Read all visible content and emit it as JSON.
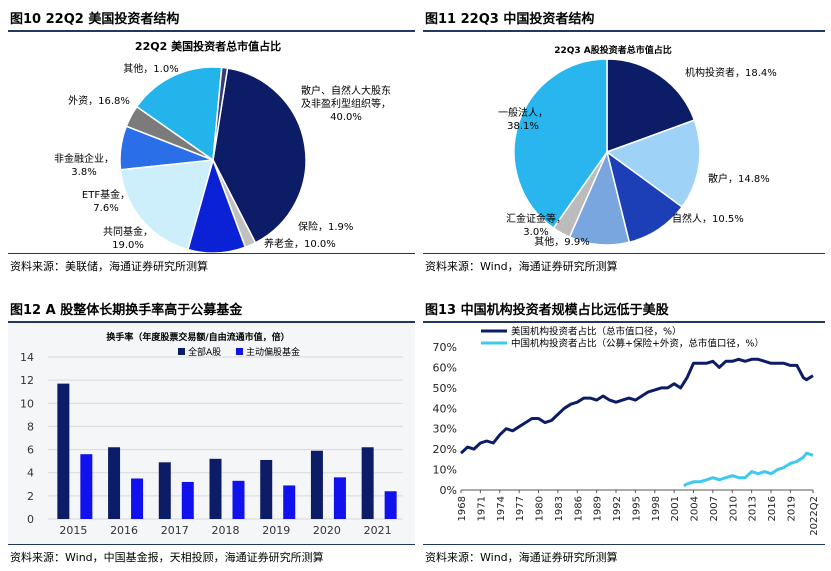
{
  "panels": {
    "p10": {
      "title": "图10 22Q2 美国投资者结构",
      "source": "资料来源：美联储，海通证券研究所测算"
    },
    "p11": {
      "title": "图11 22Q3 中国投资者结构",
      "source": "资料来源：Wind，海通证券研究所测算"
    },
    "p12": {
      "title": "图12 A 股整体长期换手率高于公募基金",
      "source": "资料来源：Wind，中国基金报，天相投顾，海通证券研究所测算"
    },
    "p13": {
      "title": "图13 中国机构投资者规模占比远低于美股",
      "source": "资料来源：Wind，海通证券研究所测算"
    }
  },
  "chart_data": [
    {
      "type": "pie",
      "title": "22Q2 美国投资者总市值占比",
      "labels": [
        "散户、自然人大股东及非盈利型组织等",
        "保险",
        "养老金",
        "共同基金",
        "ETF基金",
        "非金融企业",
        "外资",
        "其他"
      ],
      "values": [
        40.0,
        1.9,
        10.0,
        19.0,
        7.6,
        3.8,
        16.8,
        1.0
      ],
      "label_text": [
        [
          "散户、自然人大股东",
          "及非盈利型组织等，",
          "40.0%"
        ],
        [
          "保险，1.9%"
        ],
        [
          "养老金，10.0%"
        ],
        [
          "共同基金，",
          "19.0%"
        ],
        [
          "ETF基金，",
          "7.6%"
        ],
        [
          "非金融企业，",
          "3.8%"
        ],
        [
          "外资，16.8%"
        ],
        [
          "其他，1.0%"
        ]
      ],
      "colors": [
        "#0d1c66",
        "#c0c0c0",
        "#0b21d6",
        "#cdeffb",
        "#2a6fe8",
        "#7b7b7b",
        "#22b4ea",
        "#3a3a78"
      ]
    },
    {
      "type": "pie",
      "title": "22Q3 A股投资者总市值占比",
      "labels": [
        "机构投资者",
        "散户",
        "自然人",
        "其他",
        "汇金证金等",
        "一般法人"
      ],
      "values": [
        18.4,
        14.8,
        10.5,
        9.9,
        3.0,
        38.1
      ],
      "label_text": [
        [
          "机构投资者，18.4%"
        ],
        [
          "散户，14.8%"
        ],
        [
          "自然人，10.5%"
        ],
        [
          "其他，9.9%"
        ],
        [
          "汇金证金等，",
          "3.0%"
        ],
        [
          "一般法人，",
          "38.1%"
        ]
      ],
      "colors": [
        "#0d1c66",
        "#9ed3f7",
        "#1c3fb7",
        "#7aa6df",
        "#bcbcbc",
        "#29b6ef"
      ]
    },
    {
      "type": "bar",
      "title": "换手率（年度股票交易额/自由流通市值，倍）",
      "categories": [
        "2015",
        "2016",
        "2017",
        "2018",
        "2019",
        "2020",
        "2021"
      ],
      "series": [
        {
          "name": "全部A股",
          "values": [
            11.7,
            6.2,
            4.9,
            5.2,
            5.1,
            5.9,
            6.2
          ],
          "color": "#0d1c66"
        },
        {
          "name": "主动偏股基金",
          "values": [
            5.6,
            3.5,
            3.2,
            3.3,
            2.9,
            3.6,
            2.4
          ],
          "color": "#1111ee"
        }
      ],
      "ylim": [
        0,
        14
      ],
      "yticks": [
        "0",
        "2",
        "4",
        "6",
        "8",
        "10",
        "12",
        "14"
      ],
      "grid": true,
      "legend": "top"
    },
    {
      "type": "line",
      "series": [
        {
          "name": "美国机构投资者占比（总市值口径，%）",
          "color": "#0d1c66",
          "x": [
            1968,
            1969,
            1970,
            1971,
            1972,
            1973,
            1974,
            1975,
            1976,
            1977,
            1978,
            1979,
            1980,
            1981,
            1982,
            1983,
            1984,
            1985,
            1986,
            1987,
            1988,
            1989,
            1990,
            1991,
            1992,
            1993,
            1994,
            1995,
            1996,
            1997,
            1998,
            1999,
            2000,
            2001,
            2002,
            2003,
            2004,
            2005,
            2006,
            2007,
            2008,
            2009,
            2010,
            2011,
            2012,
            2013,
            2014,
            2015,
            2016,
            2017,
            2018,
            2019,
            2020,
            2021,
            2021.5,
            2022.5
          ],
          "values": [
            18,
            21,
            20,
            23,
            24,
            23,
            27,
            30,
            29,
            31,
            33,
            35,
            35,
            33,
            34,
            37,
            40,
            42,
            43,
            45,
            45,
            44,
            46,
            44,
            43,
            44,
            45,
            44,
            46,
            48,
            49,
            50,
            50,
            52,
            50,
            55,
            62,
            62,
            62,
            63,
            60,
            63,
            63,
            64,
            63,
            64,
            64,
            63,
            62,
            62,
            62,
            61,
            61,
            55,
            54,
            56
          ]
        },
        {
          "name": "中国机构投资者占比（公募+保险+外资，总市值口径，%）",
          "color": "#3fc8f0",
          "x": [
            2002.5,
            2003,
            2004,
            2005,
            2006,
            2007,
            2008,
            2009,
            2010,
            2011,
            2012,
            2013,
            2014,
            2015,
            2016,
            2017,
            2018,
            2019,
            2020,
            2021,
            2021.5,
            2022.5
          ],
          "values": [
            2,
            3,
            4,
            4,
            5,
            6,
            5,
            6,
            7,
            6,
            6,
            9,
            8,
            9,
            8,
            10,
            11,
            13,
            14,
            16,
            18,
            17
          ]
        }
      ],
      "xticks": [
        "1968",
        "1971",
        "1974",
        "1977",
        "1980",
        "1983",
        "1986",
        "1989",
        "1992",
        "1995",
        "1998",
        "2001",
        "2004",
        "2007",
        "2010",
        "2013",
        "2016",
        "2019",
        "2022Q2"
      ],
      "yticks": [
        "0%",
        "10%",
        "20%",
        "30%",
        "40%",
        "50%",
        "60%",
        "70%"
      ],
      "ylim": [
        0,
        70
      ],
      "xlim": [
        1968,
        2022.5
      ],
      "grid": false,
      "legend": "top-left"
    }
  ]
}
